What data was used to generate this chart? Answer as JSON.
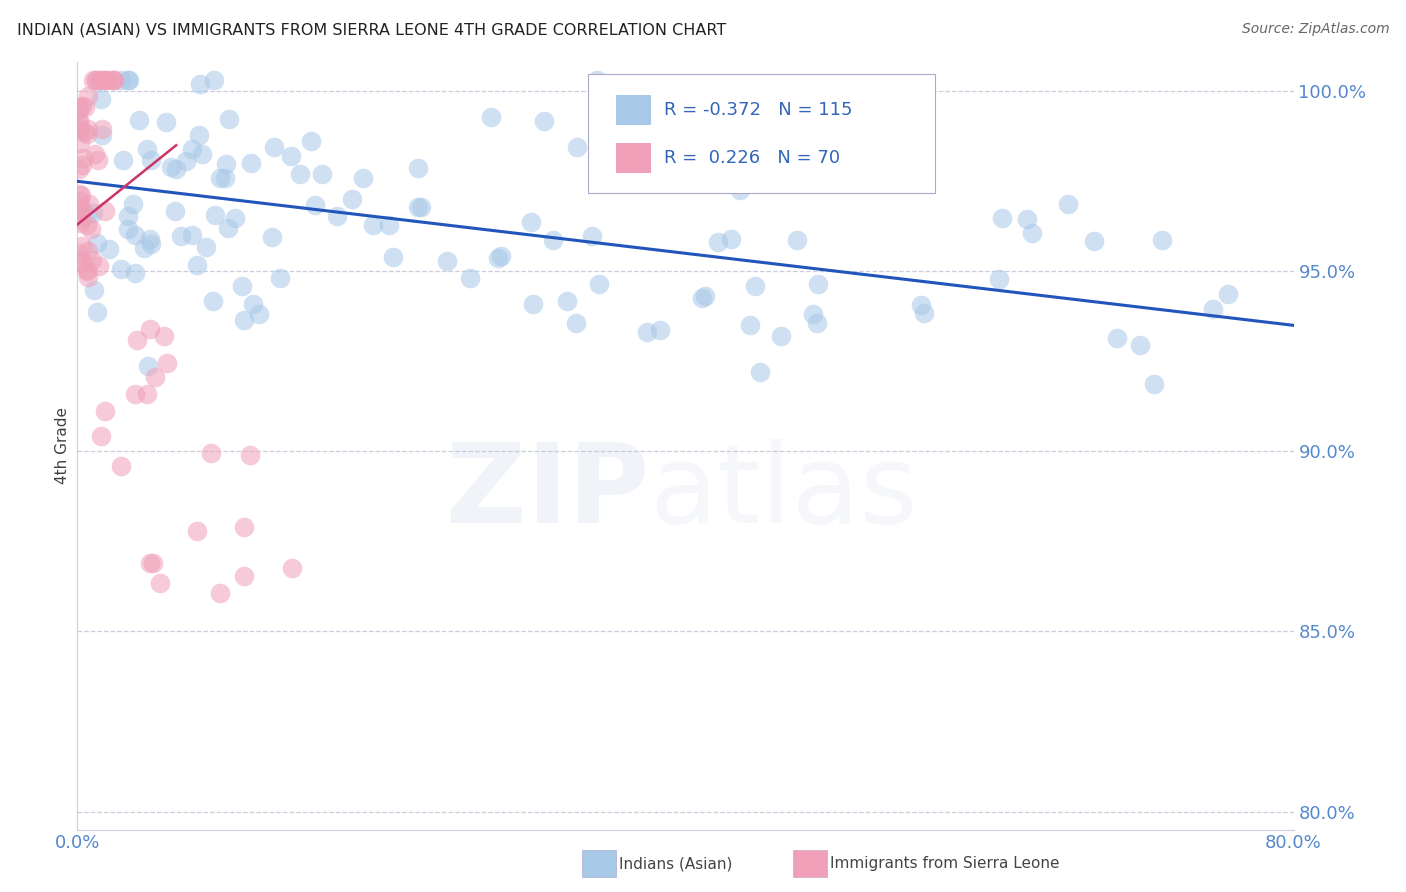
{
  "title": "INDIAN (ASIAN) VS IMMIGRANTS FROM SIERRA LEONE 4TH GRADE CORRELATION CHART",
  "source": "Source: ZipAtlas.com",
  "ylabel": "4th Grade",
  "xlim": [
    0.0,
    0.8
  ],
  "ylim": [
    0.795,
    1.008
  ],
  "xticks": [
    0.0,
    0.16,
    0.32,
    0.48,
    0.64,
    0.8
  ],
  "xticklabels": [
    "0.0%",
    "",
    "",
    "",
    "",
    "80.0%"
  ],
  "yticks": [
    0.8,
    0.85,
    0.9,
    0.95,
    1.0
  ],
  "yticklabels": [
    "80.0%",
    "85.0%",
    "90.0%",
    "95.0%",
    "100.0%"
  ],
  "legend_R1": "-0.372",
  "legend_N1": "115",
  "legend_R2": "0.226",
  "legend_N2": "70",
  "color_indian": "#a8c8e8",
  "color_sierraleone": "#f0a0b8",
  "color_indian_line": "#2255bb",
  "color_sierraleone_line": "#cc3366",
  "color_axis_labels": "#5588cc",
  "color_grid": "#ccccdd",
  "blue_line_x": [
    0.0,
    0.8
  ],
  "blue_line_y": [
    0.975,
    0.935
  ],
  "pink_line_x": [
    0.0,
    0.065
  ],
  "pink_line_y": [
    0.963,
    0.985
  ]
}
